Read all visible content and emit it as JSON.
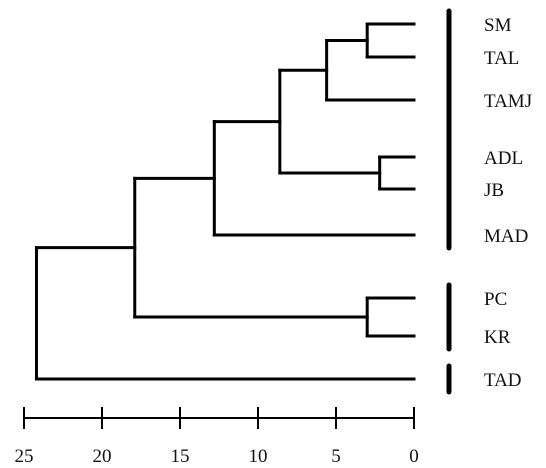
{
  "dendrogram": {
    "leaves": [
      "SM",
      "TAL",
      "TAMJ",
      "ADL",
      "JB",
      "MAD",
      "PC",
      "KR",
      "TAD"
    ],
    "merges": [
      {
        "members": [
          "SM",
          "TAL"
        ],
        "height": 3
      },
      {
        "members": [
          "ADL",
          "JB"
        ],
        "height": 2.2
      },
      {
        "members": [
          "PC",
          "KR"
        ],
        "height": 3
      },
      {
        "members": [
          "SM",
          "TAL",
          "TAMJ"
        ],
        "height": 5.6
      },
      {
        "members": [
          "SM",
          "TAL",
          "TAMJ",
          "ADL",
          "JB"
        ],
        "height": 8.6
      },
      {
        "members": [
          "SM",
          "TAL",
          "TAMJ",
          "ADL",
          "JB",
          "MAD"
        ],
        "height": 12.8
      },
      {
        "members": [
          "SM",
          "TAL",
          "TAMJ",
          "ADL",
          "JB",
          "MAD",
          "PC",
          "KR"
        ],
        "height": 17.9
      },
      {
        "members": [
          "SM",
          "TAL",
          "TAMJ",
          "ADL",
          "JB",
          "MAD",
          "PC",
          "KR",
          "TAD"
        ],
        "height": 24.2
      }
    ],
    "groups": [
      {
        "members": [
          "SM",
          "TAL",
          "TAMJ",
          "ADL",
          "JB",
          "MAD"
        ]
      },
      {
        "members": [
          "PC",
          "KR"
        ]
      },
      {
        "members": [
          "TAD"
        ]
      }
    ],
    "axis": {
      "ticks": [
        25,
        20,
        15,
        10,
        5,
        0
      ],
      "tick_labels": [
        "25",
        "20",
        "15",
        "10",
        "5",
        "0"
      ],
      "range": [
        0,
        25
      ]
    }
  }
}
